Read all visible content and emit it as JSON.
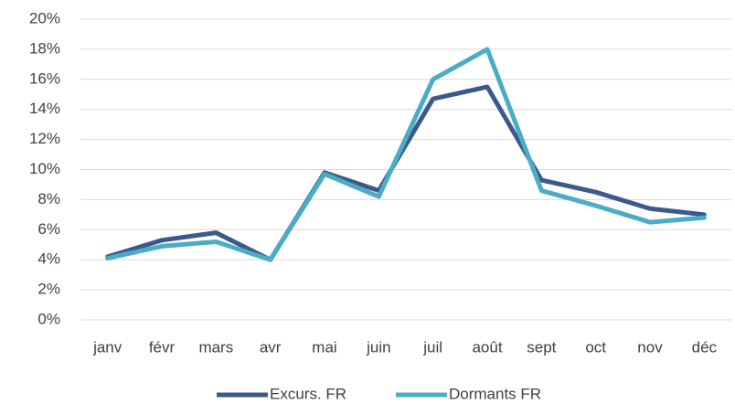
{
  "chart_data": {
    "type": "line",
    "categories": [
      "janv",
      "févr",
      "mars",
      "avr",
      "mai",
      "juin",
      "juil",
      "août",
      "sept",
      "oct",
      "nov",
      "déc"
    ],
    "series": [
      {
        "name": "Excurs. FR",
        "color": "#3a5a8c",
        "values": [
          4.2,
          5.3,
          5.8,
          4.0,
          9.8,
          8.6,
          14.7,
          15.5,
          9.3,
          8.5,
          7.4,
          7.0
        ]
      },
      {
        "name": "Dormants FR",
        "color": "#4bacc6",
        "values": [
          4.1,
          4.9,
          5.2,
          4.0,
          9.7,
          8.2,
          16.0,
          18.0,
          8.6,
          7.6,
          6.5,
          6.8
        ]
      }
    ],
    "ylim": [
      0,
      20
    ],
    "yticks": [
      {
        "value": 0,
        "label": "0%"
      },
      {
        "value": 2,
        "label": "2%"
      },
      {
        "value": 4,
        "label": "4%"
      },
      {
        "value": 6,
        "label": "6%"
      },
      {
        "value": 8,
        "label": "8%"
      },
      {
        "value": 10,
        "label": "10%"
      },
      {
        "value": 12,
        "label": "12%"
      },
      {
        "value": 14,
        "label": "14%"
      },
      {
        "value": 16,
        "label": "16%"
      },
      {
        "value": 18,
        "label": "18%"
      },
      {
        "value": 20,
        "label": "20%"
      }
    ],
    "grid": true,
    "legend": "bottom"
  }
}
